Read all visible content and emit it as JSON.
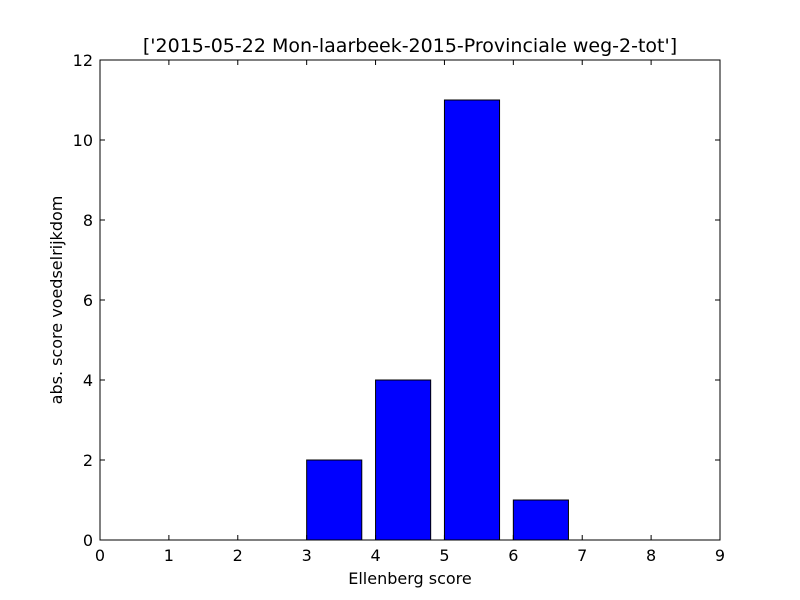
{
  "chart_data": {
    "type": "bar",
    "title": "['2015-05-22 Mon-laarbeek-2015-Provinciale weg-2-tot']",
    "xlabel": "Ellenberg score",
    "ylabel": "abs. score voedselrijkdom",
    "x_ticks": [
      "0",
      "1",
      "2",
      "3",
      "4",
      "5",
      "6",
      "7",
      "8",
      "9"
    ],
    "y_ticks": [
      "0",
      "2",
      "4",
      "6",
      "8",
      "10",
      "12"
    ],
    "xlim": [
      0,
      9
    ],
    "ylim": [
      0,
      12
    ],
    "bar_width": 0.8,
    "bars": [
      {
        "x": 0,
        "value": 0
      },
      {
        "x": 1,
        "value": 0
      },
      {
        "x": 2,
        "value": 0
      },
      {
        "x": 3,
        "value": 2
      },
      {
        "x": 4,
        "value": 4
      },
      {
        "x": 5,
        "value": 11
      },
      {
        "x": 6,
        "value": 1
      },
      {
        "x": 7,
        "value": 0
      },
      {
        "x": 8,
        "value": 0
      }
    ],
    "bar_color": "#0000ff",
    "edge_color": "#000000",
    "grid": false,
    "legend": "none"
  }
}
